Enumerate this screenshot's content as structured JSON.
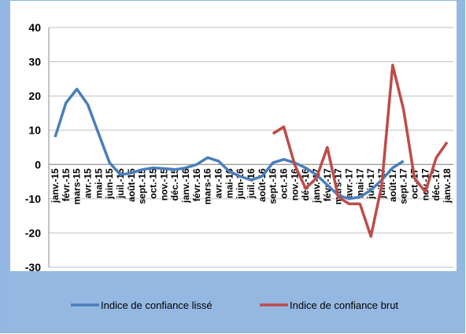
{
  "chart_data": {
    "type": "line",
    "categories": [
      "janv.-15",
      "févr.-15",
      "mars-15",
      "avr.-15",
      "mai-15",
      "juin-15",
      "juil.-15",
      "août-15",
      "sept.-15",
      "oct.-15",
      "nov.-15",
      "déc.-15",
      "janv.-16",
      "févr.-16",
      "mars-16",
      "avr.-16",
      "mai-16",
      "juin-16",
      "juil.-16",
      "août-16",
      "sept.-16",
      "oct.-16",
      "nov.-16",
      "déc.-16",
      "janv.-17",
      "févr.-17",
      "mars-17",
      "avr.-17",
      "mai-17",
      "juin-17",
      "juil.-17",
      "août-17",
      "sept.-17",
      "oct.-17",
      "nov.-17",
      "déc.-17",
      "janv.-18"
    ],
    "series": [
      {
        "name": "Indice de confiance lissé",
        "color": "#4a7ebb",
        "values": [
          8,
          18,
          22,
          17.5,
          9,
          0.5,
          -3,
          -2.5,
          -1.5,
          -1,
          -1.2,
          -1.5,
          -1,
          0,
          2,
          1,
          -2,
          -3.5,
          -4.5,
          -3.5,
          0.5,
          1.5,
          0.5,
          -1,
          -3,
          -6,
          -9,
          -10,
          -9.5,
          -7.5,
          -4.5,
          -1,
          1,
          null,
          null,
          null,
          null
        ]
      },
      {
        "name": "Indice de confiance brut",
        "color": "#be4b48",
        "values": [
          null,
          null,
          null,
          null,
          null,
          null,
          null,
          null,
          null,
          null,
          null,
          null,
          null,
          null,
          null,
          null,
          null,
          null,
          null,
          null,
          9,
          11,
          0,
          -7,
          -4,
          5,
          -9.5,
          -11.5,
          -11.5,
          -21,
          -6,
          29,
          16,
          -4,
          -8,
          2,
          6.5
        ]
      }
    ],
    "ylim": [
      -30,
      40
    ],
    "yticks": [
      -30,
      -20,
      -10,
      0,
      10,
      20,
      30,
      40
    ],
    "grid": true,
    "legend": "bottom"
  }
}
